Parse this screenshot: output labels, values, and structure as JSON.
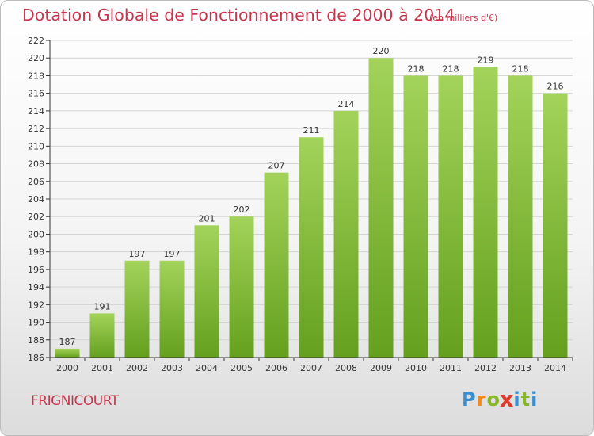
{
  "header": {
    "title": "Dotation Globale de Fonctionnement de 2000 à 2014",
    "unit": "(en milliers d'€)"
  },
  "footer": {
    "town": "FRIGNICOURT",
    "logo": "Proxiti"
  },
  "colors": {
    "bar_top": "#a3d35a",
    "bar_bottom": "#64a01e",
    "title": "#c8364e",
    "axis": "#333333",
    "grid": "#d4d4d4",
    "logo": [
      "#3b8fd0",
      "#f08a1c",
      "#88b827",
      "#e03a2e",
      "#3b8fd0",
      "#88b827",
      "#3b8fd0"
    ]
  },
  "chart_data": {
    "type": "bar",
    "title": "Dotation Globale de Fonctionnement de 2000 à 2014",
    "subtitle": "(en milliers d'€)",
    "categories": [
      "2000",
      "2001",
      "2002",
      "2003",
      "2004",
      "2005",
      "2006",
      "2007",
      "2008",
      "2009",
      "2010",
      "2011",
      "2012",
      "2013",
      "2014"
    ],
    "values": [
      187,
      191,
      197,
      197,
      201,
      202,
      207,
      211,
      214,
      220,
      218,
      218,
      219,
      218,
      216
    ],
    "ylim": [
      186,
      222
    ],
    "yticks": [
      186,
      188,
      190,
      192,
      194,
      196,
      198,
      200,
      202,
      204,
      206,
      208,
      210,
      212,
      214,
      216,
      218,
      220,
      222
    ],
    "grid": true,
    "data_labels": true
  }
}
